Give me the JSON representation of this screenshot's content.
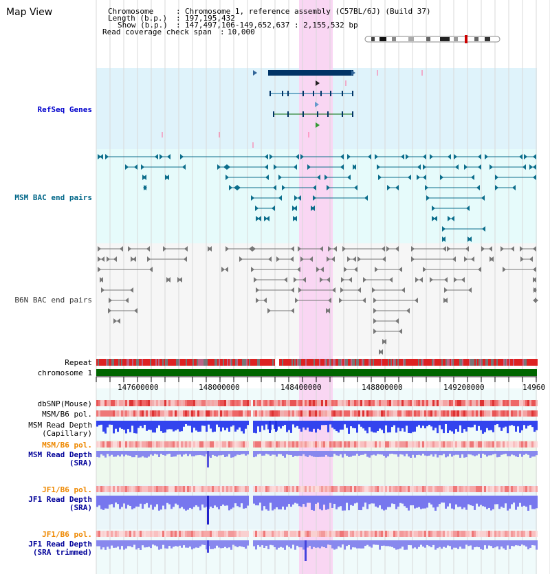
{
  "title": "Map View",
  "info": {
    "chromosome_label": "Chromosome",
    "chromosome_value": "Chromosome 1, reference assembly (C57BL/6J) (Build 37)",
    "length_label": "Length (b.p.)",
    "length_value": "197,195,432",
    "show_label": "Show (b.p.)",
    "show_value": "147,497,106-149,652,637 : 2,155,532 bp",
    "coverage_label": "Read coverage check span",
    "coverage_value": "10,000"
  },
  "tracks": {
    "refseq": "RefSeq Genes",
    "msm_bac": "MSM BAC end pairs",
    "b6n_bac": "B6N BAC end pairs",
    "repeat": "Repeat",
    "chromosome": "chromosome 1",
    "dbsnp": "dbSNP(Mouse)",
    "msm_b6_pol_1": "MSM/B6 pol.",
    "msm_depth_cap_1": "MSM Read Depth",
    "msm_depth_cap_2": "(Capillary)",
    "msm_b6_pol_2": "MSM/B6 pol.",
    "msm_depth_sra_1": "MSM Read Depth",
    "msm_depth_sra_2": "(SRA)",
    "jf1_b6_pol_1": "JF1/B6 pol.",
    "jf1_depth_sra_1": "JF1 Read Depth",
    "jf1_depth_sra_2": "(SRA)",
    "jf1_b6_pol_2": "JF1/B6 pol.",
    "jf1_depth_trim_1": "JF1 Read Depth",
    "jf1_depth_trim_2": "(SRA trimmed)"
  },
  "axis": {
    "ticks": [
      "147600000",
      "148000000",
      "148400000",
      "148800000",
      "149200000",
      "14960"
    ]
  },
  "colors": {
    "refseq_bg": "#dff3fb",
    "bac_bg": "#e6fbfb",
    "b6n_bg": "#f6f6f6",
    "highlight": "#f9d6f3",
    "msm_label": "#006688",
    "refseq_label": "#0000cc",
    "orange_label": "#ee8800",
    "navy_label": "#000099"
  }
}
